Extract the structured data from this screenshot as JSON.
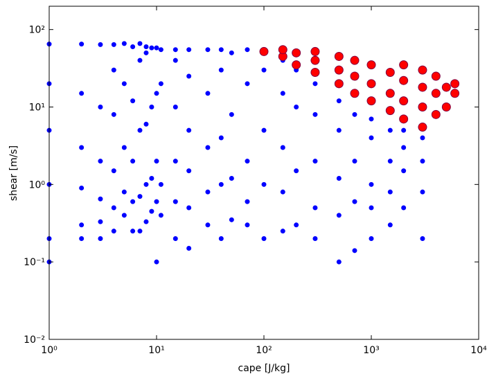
{
  "chart_data": {
    "type": "scatter",
    "xlabel": "cape [J/kg]",
    "ylabel": "shear [m/s]",
    "xscale": "log",
    "yscale": "log",
    "xlim": [
      1,
      10000
    ],
    "ylim": [
      0.01,
      200
    ],
    "xticks": [
      {
        "value": 1,
        "label": "10⁰"
      },
      {
        "value": 10,
        "label": "10¹"
      },
      {
        "value": 100,
        "label": "10²"
      },
      {
        "value": 1000,
        "label": "10³"
      },
      {
        "value": 10000,
        "label": "10⁴"
      }
    ],
    "yticks": [
      {
        "value": 0.01,
        "label": "10⁻²"
      },
      {
        "value": 0.1,
        "label": "10⁻¹"
      },
      {
        "value": 1,
        "label": "10⁰"
      },
      {
        "value": 10,
        "label": "10¹"
      },
      {
        "value": 100,
        "label": "10²"
      }
    ],
    "series": [
      {
        "color": "#0000ff",
        "marker": "o",
        "x": [
          1,
          1,
          1,
          1,
          1,
          1,
          2,
          2,
          2,
          2,
          2,
          2,
          3,
          3,
          3,
          3,
          3,
          3,
          4,
          4,
          4,
          4,
          4,
          4,
          5,
          5,
          5,
          5,
          5,
          6,
          6,
          6,
          6,
          6,
          7,
          7,
          7,
          7,
          7,
          8,
          8,
          8,
          8,
          8,
          9,
          9,
          9,
          9,
          10,
          10,
          10,
          10,
          10,
          11,
          11,
          11,
          11,
          15,
          15,
          15,
          15,
          15,
          15,
          20,
          20,
          20,
          20,
          20,
          20,
          30,
          30,
          30,
          30,
          30,
          40,
          40,
          40,
          40,
          40,
          50,
          50,
          50,
          50,
          70,
          70,
          70,
          70,
          70,
          100,
          100,
          100,
          100,
          150,
          150,
          150,
          150,
          150,
          200,
          200,
          200,
          200,
          300,
          300,
          300,
          300,
          300,
          500,
          500,
          500,
          500,
          500,
          700,
          700,
          700,
          700,
          1000,
          1000,
          1000,
          1000,
          1000,
          1500,
          1500,
          1500,
          1500,
          2000,
          2000,
          2000,
          2000,
          3000,
          3000,
          3000,
          3000
        ],
        "values": [
          0.1,
          0.2,
          1,
          5,
          20,
          65,
          0.2,
          0.3,
          0.9,
          3,
          15,
          65,
          0.2,
          0.33,
          0.65,
          2,
          10,
          64,
          0.25,
          0.5,
          1.5,
          8,
          30,
          64,
          0.4,
          0.8,
          3,
          20,
          66,
          0.25,
          0.6,
          2,
          12,
          60,
          0.25,
          0.7,
          5,
          40,
          66,
          0.33,
          1,
          6,
          50,
          60,
          0.45,
          1.2,
          10,
          58,
          0.1,
          0.6,
          2,
          15,
          58,
          0.4,
          1,
          20,
          55,
          0.2,
          0.6,
          2,
          10,
          40,
          55,
          0.15,
          0.5,
          1.5,
          5,
          25,
          55,
          0.3,
          0.8,
          3,
          15,
          55,
          0.2,
          1,
          4,
          30,
          55,
          0.35,
          1.2,
          8,
          50,
          0.3,
          0.6,
          2,
          20,
          55,
          0.2,
          1,
          5,
          30,
          0.25,
          0.8,
          3,
          15,
          40,
          0.3,
          1.5,
          10,
          30,
          0.2,
          0.5,
          2,
          8,
          20,
          0.1,
          0.4,
          1.2,
          5,
          12,
          0.14,
          0.6,
          2,
          8,
          0.2,
          0.5,
          1,
          4,
          7,
          0.3,
          0.8,
          2,
          5,
          0.5,
          1.5,
          3,
          5,
          0.2,
          0.8,
          2,
          4
        ]
      },
      {
        "color": "#ff0000",
        "marker": "x",
        "x": [
          100,
          150,
          150,
          200,
          200,
          300,
          300,
          300,
          500,
          500,
          500,
          700,
          700,
          700,
          1000,
          1000,
          1000,
          1500,
          1500,
          1500,
          2000,
          2000,
          2000,
          2000,
          3000,
          3000,
          3000,
          3000,
          4000,
          4000,
          4000,
          5000,
          5000,
          6000,
          6000
        ],
        "values": [
          52,
          45,
          55,
          35,
          50,
          28,
          40,
          52,
          20,
          30,
          45,
          15,
          25,
          40,
          12,
          20,
          35,
          9,
          15,
          28,
          7,
          12,
          22,
          35,
          5.5,
          10,
          18,
          30,
          8,
          15,
          25,
          10,
          18,
          15,
          20
        ]
      }
    ]
  }
}
